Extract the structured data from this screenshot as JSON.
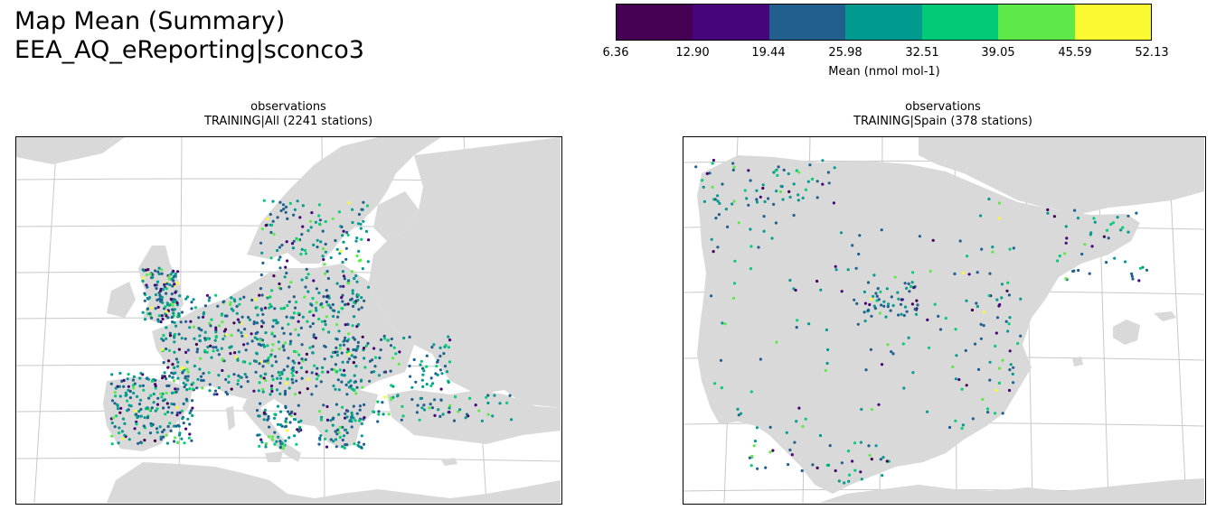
{
  "title": {
    "line1": "Map Mean (Summary)",
    "line2": "EEA_AQ_eReporting|sconco3"
  },
  "colorbar": {
    "label": "Mean (nmol mol-1)",
    "ticks": [
      "6.36",
      "12.90",
      "19.44",
      "25.98",
      "32.51",
      "39.05",
      "45.59",
      "52.13"
    ],
    "colors": [
      "#440154",
      "#46057a",
      "#21608e",
      "#029a8f",
      "#02cb77",
      "#5ee948",
      "#fafa32"
    ]
  },
  "panels": [
    {
      "title_line1": "observations",
      "title_line2": "TRAINING|All (2241 stations)"
    },
    {
      "title_line1": "observations",
      "title_line2": "TRAINING|Spain (378 stations)"
    }
  ],
  "colors": {
    "land": "#d9d9d9",
    "sea": "#ffffff",
    "gridlines": "#c8c8c8"
  }
}
